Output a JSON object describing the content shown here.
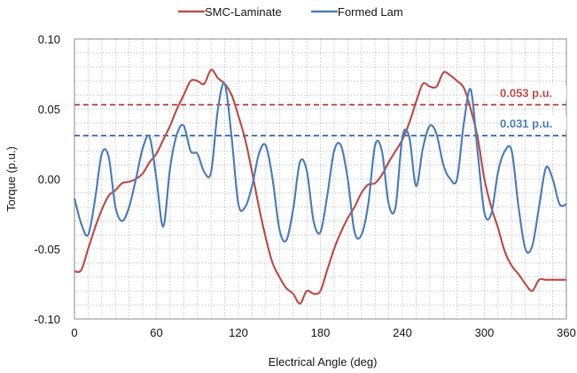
{
  "chart_data": {
    "type": "line",
    "xlabel": "Electrical Angle (deg)",
    "ylabel": "Torque (p.u.)",
    "xlim": [
      0,
      360
    ],
    "ylim": [
      -0.1,
      0.1
    ],
    "x_ticks": [
      0,
      60,
      120,
      180,
      240,
      300,
      360
    ],
    "x_tick_labels": [
      "0",
      "60",
      "120",
      "180",
      "240",
      "300",
      "360"
    ],
    "y_ticks": [
      0.1,
      0.05,
      0.0,
      -0.05,
      -0.1
    ],
    "y_tick_labels": [
      "0.10",
      "0.05",
      "0.00",
      "-0.05",
      "-0.10"
    ],
    "grid": true,
    "legend_position": "top-center",
    "series": [
      {
        "name": "SMC-Laminate",
        "color": "#c0504d",
        "x": [
          0,
          5,
          10,
          15,
          20,
          25,
          30,
          35,
          40,
          45,
          50,
          55,
          60,
          65,
          70,
          75,
          80,
          85,
          90,
          95,
          100,
          105,
          110,
          115,
          120,
          125,
          130,
          135,
          140,
          145,
          150,
          155,
          160,
          165,
          170,
          175,
          180,
          185,
          190,
          195,
          200,
          205,
          210,
          215,
          220,
          225,
          230,
          235,
          240,
          245,
          250,
          255,
          260,
          265,
          270,
          275,
          280,
          285,
          290,
          295,
          300,
          305,
          310,
          315,
          320,
          325,
          330,
          335,
          340,
          345,
          350,
          355,
          360
        ],
        "values": [
          -0.066,
          -0.065,
          -0.05,
          -0.035,
          -0.022,
          -0.012,
          -0.008,
          -0.003,
          -0.002,
          0.0,
          0.004,
          0.012,
          0.018,
          0.028,
          0.038,
          0.05,
          0.06,
          0.07,
          0.07,
          0.068,
          0.078,
          0.072,
          0.068,
          0.06,
          0.045,
          0.028,
          0.005,
          -0.02,
          -0.042,
          -0.06,
          -0.07,
          -0.078,
          -0.082,
          -0.089,
          -0.08,
          -0.082,
          -0.08,
          -0.065,
          -0.05,
          -0.038,
          -0.028,
          -0.02,
          -0.01,
          -0.004,
          -0.003,
          0.003,
          0.012,
          0.02,
          0.028,
          0.04,
          0.055,
          0.068,
          0.066,
          0.066,
          0.076,
          0.074,
          0.07,
          0.065,
          0.05,
          0.03,
          0.0,
          -0.02,
          -0.035,
          -0.052,
          -0.062,
          -0.068,
          -0.075,
          -0.08,
          -0.072,
          -0.072,
          -0.072,
          -0.072,
          -0.072
        ]
      },
      {
        "name": "Formed Lam",
        "color": "#4f81bd",
        "x": [
          0,
          5,
          10,
          15,
          20,
          25,
          30,
          35,
          40,
          45,
          50,
          55,
          60,
          65,
          70,
          75,
          80,
          85,
          90,
          95,
          100,
          105,
          110,
          115,
          120,
          125,
          130,
          135,
          140,
          145,
          150,
          155,
          160,
          165,
          170,
          175,
          180,
          185,
          190,
          195,
          200,
          205,
          210,
          215,
          220,
          225,
          230,
          235,
          240,
          245,
          250,
          255,
          260,
          265,
          270,
          275,
          280,
          285,
          290,
          295,
          300,
          305,
          310,
          315,
          320,
          325,
          330,
          335,
          340,
          345,
          350,
          355,
          360
        ],
        "values": [
          -0.014,
          -0.032,
          -0.04,
          -0.015,
          0.018,
          0.016,
          -0.02,
          -0.03,
          -0.02,
          0.0,
          0.022,
          0.03,
          0.0,
          -0.034,
          0.008,
          0.032,
          0.038,
          0.02,
          0.018,
          0.005,
          0.005,
          0.05,
          0.068,
          0.03,
          -0.018,
          -0.02,
          -0.005,
          0.018,
          0.024,
          0.0,
          -0.036,
          -0.044,
          -0.022,
          0.012,
          0.006,
          -0.03,
          -0.038,
          -0.012,
          0.02,
          0.024,
          0.0,
          -0.038,
          -0.04,
          -0.018,
          0.024,
          0.02,
          -0.018,
          -0.02,
          0.03,
          0.03,
          -0.005,
          0.022,
          0.038,
          0.032,
          0.01,
          0.0,
          0.0,
          0.04,
          0.064,
          0.02,
          -0.024,
          -0.025,
          0.005,
          0.02,
          0.02,
          -0.02,
          -0.05,
          -0.048,
          -0.02,
          0.008,
          0.0,
          -0.018,
          -0.018
        ]
      }
    ],
    "reference_lines": [
      {
        "y": 0.053,
        "label": "0.053 p.u.",
        "color": "#c0504d",
        "style": "dashed"
      },
      {
        "y": 0.031,
        "label": "0.031 p.u.",
        "color": "#4f81bd",
        "style": "dashed"
      }
    ]
  }
}
